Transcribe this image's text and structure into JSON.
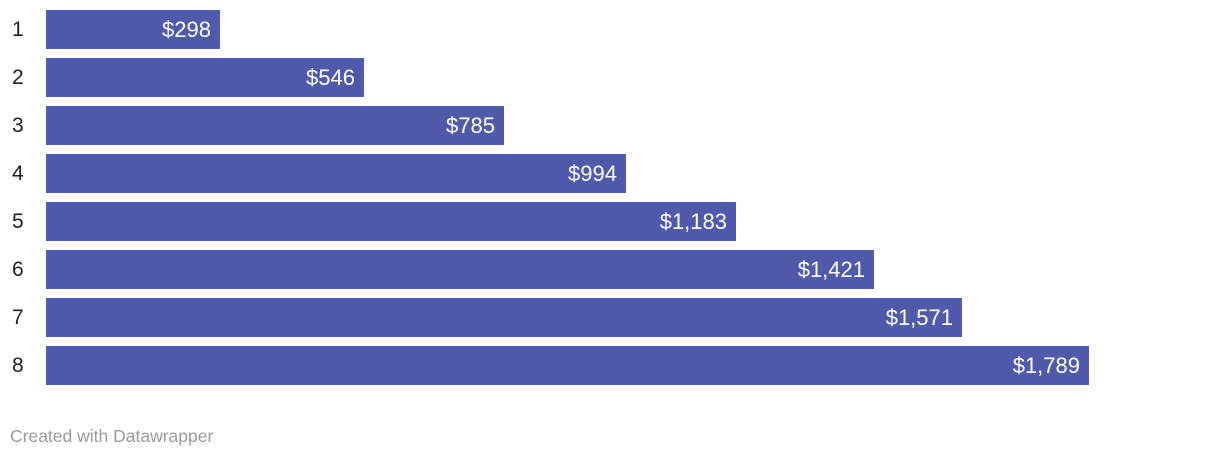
{
  "chart_data": {
    "type": "bar",
    "orientation": "horizontal",
    "title": "",
    "xlabel": "",
    "ylabel": "",
    "categories": [
      "1",
      "2",
      "3",
      "4",
      "5",
      "6",
      "7",
      "8"
    ],
    "values": [
      298,
      546,
      785,
      994,
      1183,
      1421,
      1571,
      1789
    ],
    "value_labels": [
      "$298",
      "$546",
      "$785",
      "$994",
      "$1,183",
      "$1,421",
      "$1,571",
      "$1,789"
    ],
    "value_label_position": "inside-end",
    "xlim": [
      0,
      2000
    ],
    "grid": false,
    "legend": false,
    "bar_color": "#4f5aab",
    "value_label_color": "#ffffff",
    "category_label_color": "#202020"
  },
  "footer": {
    "attribution": "Created with Datawrapper"
  },
  "colors": {
    "background": "#ffffff",
    "footer_text": "#9a9a9a"
  }
}
